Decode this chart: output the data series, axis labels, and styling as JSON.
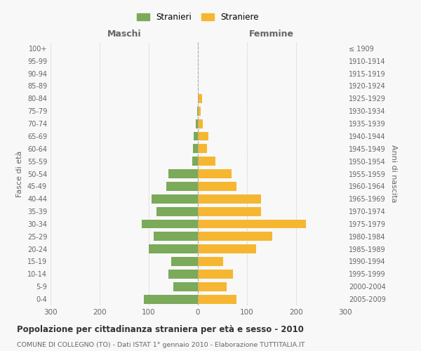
{
  "age_groups": [
    "100+",
    "95-99",
    "90-94",
    "85-89",
    "80-84",
    "75-79",
    "70-74",
    "65-69",
    "60-64",
    "55-59",
    "50-54",
    "45-49",
    "40-44",
    "35-39",
    "30-34",
    "25-29",
    "20-24",
    "15-19",
    "10-14",
    "5-9",
    "0-4"
  ],
  "birth_years": [
    "≤ 1909",
    "1910-1914",
    "1915-1919",
    "1920-1924",
    "1925-1929",
    "1930-1934",
    "1935-1939",
    "1940-1944",
    "1945-1949",
    "1950-1954",
    "1955-1959",
    "1960-1964",
    "1965-1969",
    "1970-1974",
    "1975-1979",
    "1980-1984",
    "1985-1989",
    "1990-1994",
    "1995-1999",
    "2000-2004",
    "2005-2009"
  ],
  "maschi": [
    0,
    0,
    0,
    0,
    0,
    2,
    5,
    8,
    10,
    12,
    60,
    65,
    95,
    85,
    115,
    90,
    100,
    55,
    60,
    50,
    110
  ],
  "femmine": [
    0,
    0,
    0,
    0,
    8,
    5,
    10,
    22,
    18,
    35,
    68,
    78,
    128,
    128,
    220,
    152,
    118,
    52,
    72,
    58,
    78
  ],
  "maschi_color": "#7aaa5a",
  "femmine_color": "#f5b731",
  "xlim": 300,
  "title": "Popolazione per cittadinanza straniera per età e sesso - 2010",
  "subtitle": "COMUNE DI COLLEGNO (TO) - Dati ISTAT 1° gennaio 2010 - Elaborazione TUTTITALIA.IT",
  "ylabel_left": "Fasce di età",
  "ylabel_right": "Anni di nascita",
  "xlabel_maschi": "Maschi",
  "xlabel_femmine": "Femmine",
  "legend_maschi": "Stranieri",
  "legend_femmine": "Straniere",
  "bg_color": "#f8f8f8",
  "grid_color": "#cccccc",
  "text_color": "#666666"
}
